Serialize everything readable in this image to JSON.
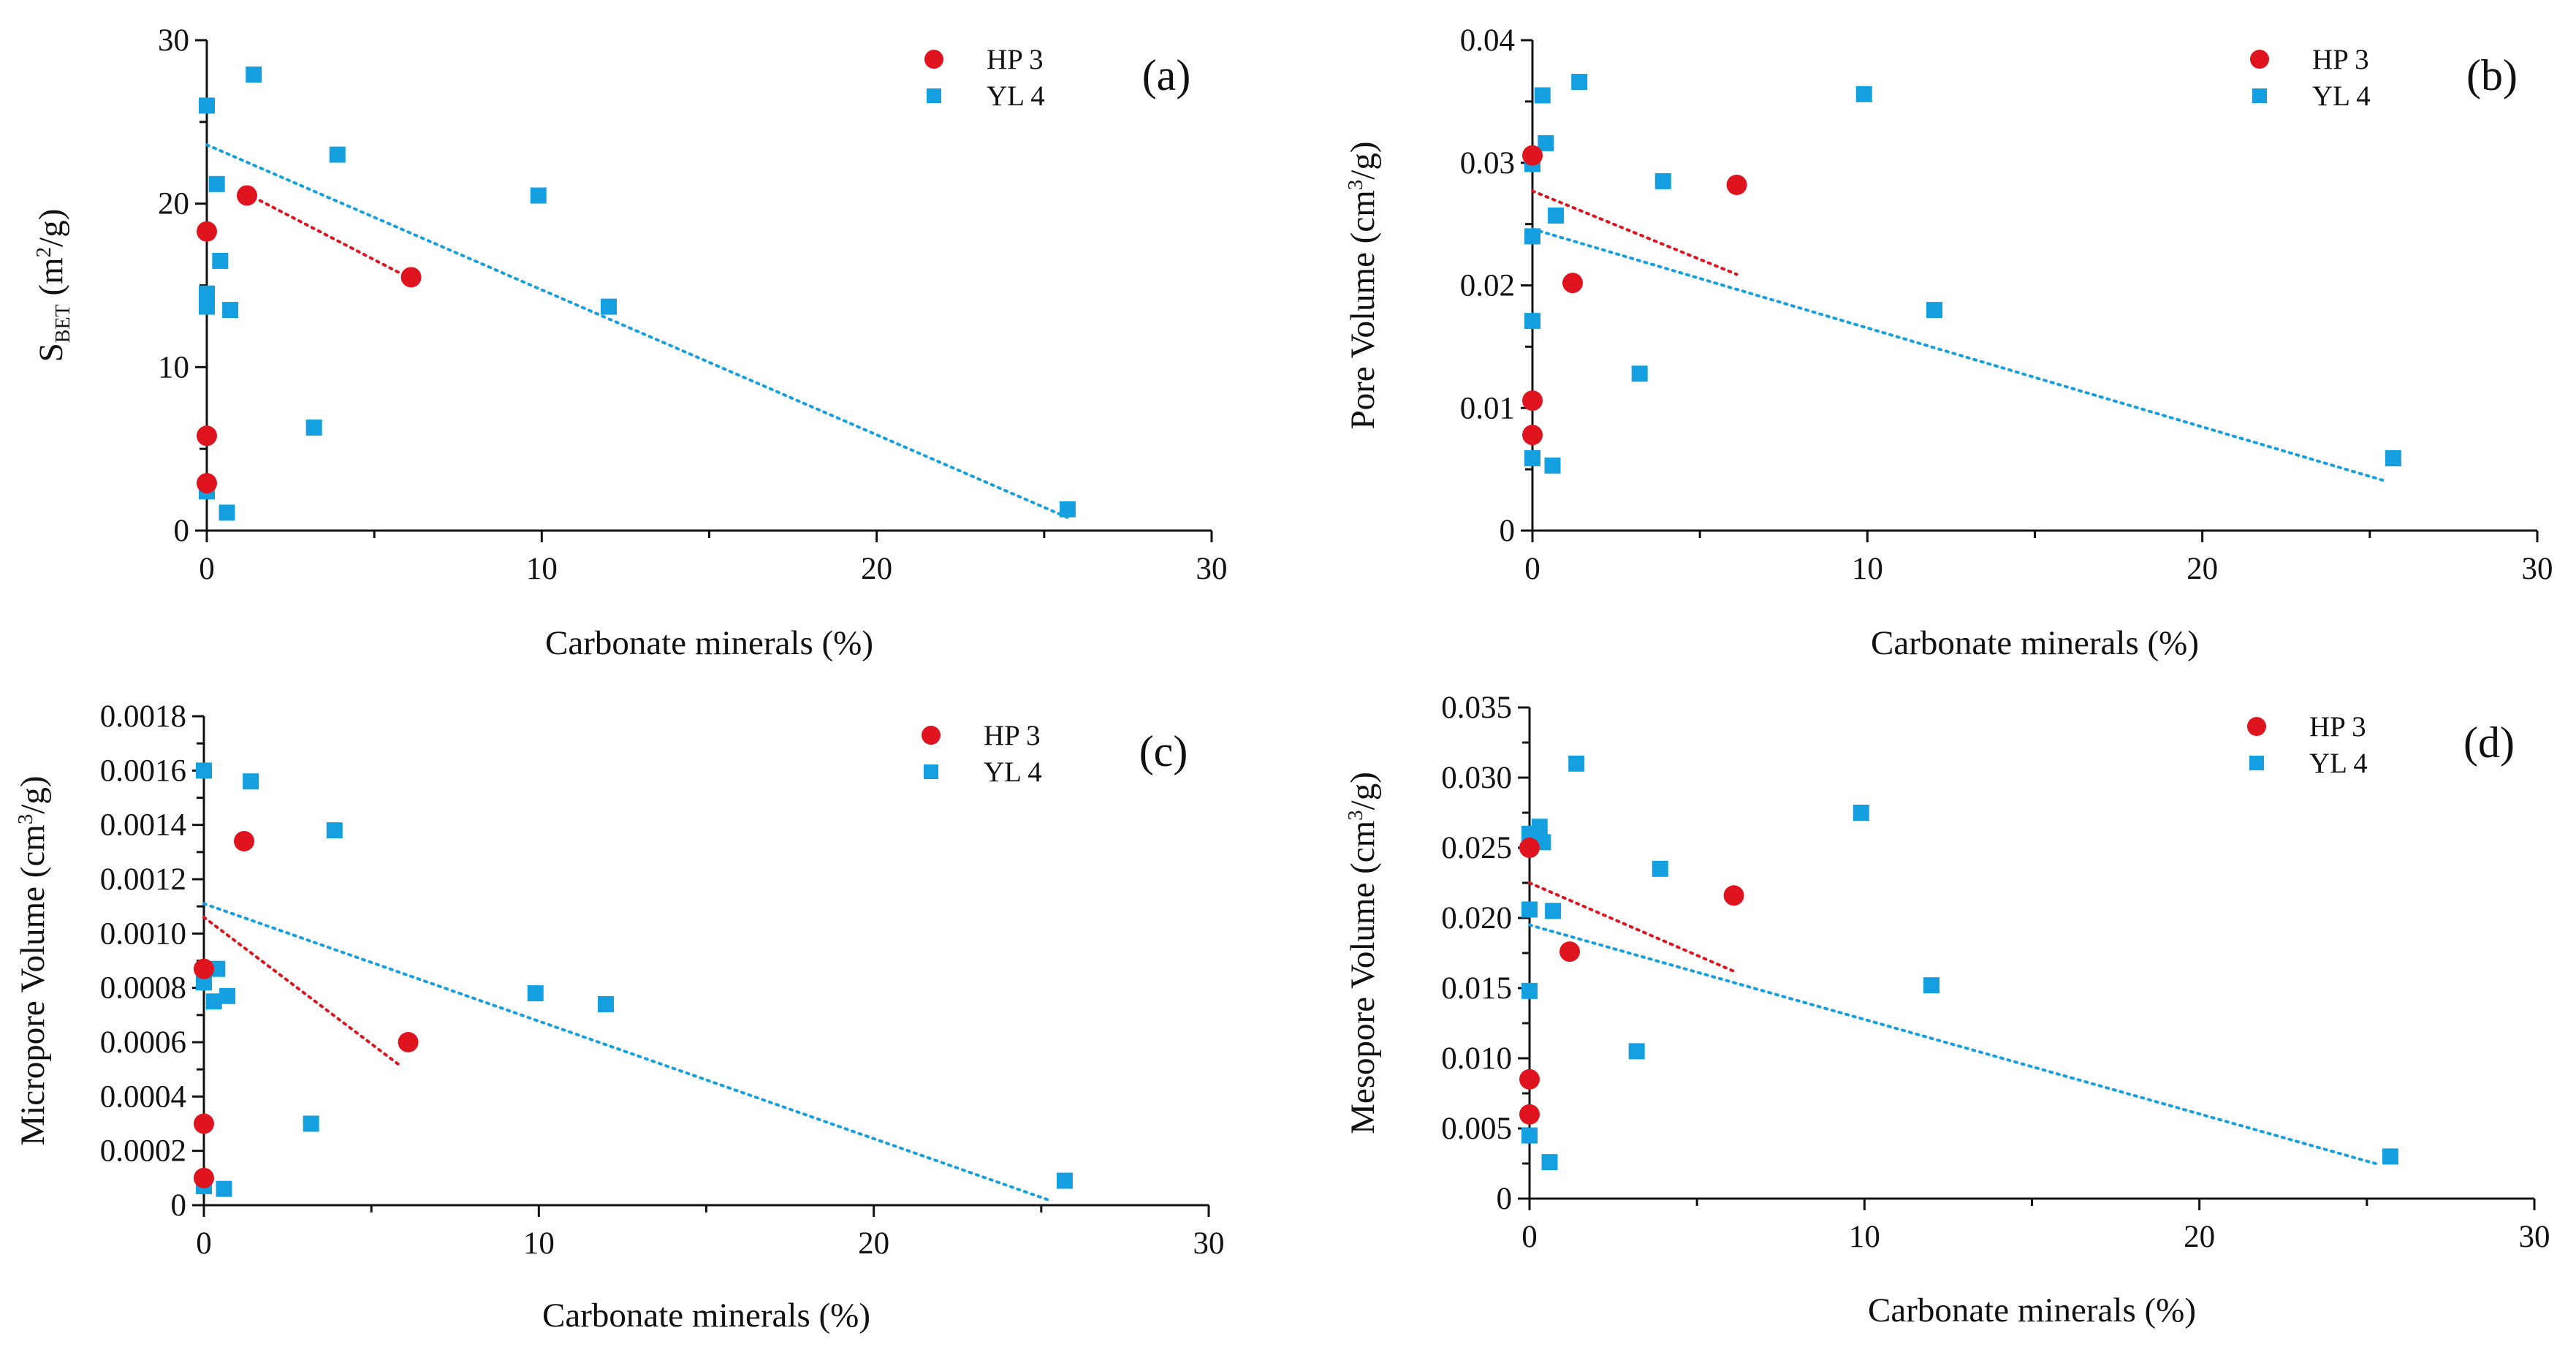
{
  "colors": {
    "HP 3": "#e0141e",
    "YL 4": "#14a0e0",
    "axis": "#111111"
  },
  "chart_data": [
    {
      "type": "scatter",
      "panel": "(a)",
      "xlabel": "Carbonate minerals (%)",
      "ylabel_main": "S",
      "ylabel_sub": "BET",
      "ylabel_unit_prefix": " (m",
      "ylabel_unit_sup": "2",
      "ylabel_unit_suffix": "/g)",
      "xlim": [
        0,
        30
      ],
      "ylim": [
        0,
        30
      ],
      "xticks": [
        0,
        10,
        20,
        30
      ],
      "yticks": [
        0,
        10,
        20,
        30
      ],
      "ytick_labels": [
        "0",
        "10",
        "20",
        "30"
      ],
      "legend_position": "top-right",
      "series": [
        {
          "name": "HP 3",
          "marker": "circle",
          "points": [
            [
              0,
              18.3
            ],
            [
              0,
              5.8
            ],
            [
              0,
              2.9
            ],
            [
              1.2,
              20.5
            ],
            [
              6.1,
              15.5
            ]
          ],
          "trend": [
            [
              1.2,
              20.6
            ],
            [
              6.1,
              15.4
            ]
          ]
        },
        {
          "name": "YL 4",
          "marker": "square",
          "points": [
            [
              0,
              26
            ],
            [
              0,
              14.5
            ],
            [
              0,
              14
            ],
            [
              0,
              13.7
            ],
            [
              0,
              2.4
            ],
            [
              0.3,
              21.2
            ],
            [
              0.4,
              16.5
            ],
            [
              0.6,
              1.1
            ],
            [
              0.7,
              13.5
            ],
            [
              1.4,
              27.9
            ],
            [
              3.2,
              6.3
            ],
            [
              3.9,
              23
            ],
            [
              9.9,
              20.5
            ],
            [
              12,
              13.7
            ],
            [
              25.7,
              1.3
            ]
          ],
          "trend": [
            [
              0,
              23.6
            ],
            [
              25.7,
              0.8
            ]
          ]
        }
      ]
    },
    {
      "type": "scatter",
      "panel": "(b)",
      "xlabel": "Carbonate minerals (%)",
      "ylabel_main": "Pore Volume",
      "ylabel_unit_prefix": " (cm",
      "ylabel_unit_sup": "3",
      "ylabel_unit_suffix": "/g)",
      "xlim": [
        0,
        30
      ],
      "ylim": [
        0,
        0.04
      ],
      "xticks": [
        0,
        10,
        20,
        30
      ],
      "yticks": [
        0,
        0.01,
        0.02,
        0.03,
        0.04
      ],
      "ytick_labels": [
        "0",
        "0.01",
        "0.02",
        "0.03",
        "0.04"
      ],
      "legend_position": "top-right",
      "series": [
        {
          "name": "HP 3",
          "marker": "circle",
          "points": [
            [
              0,
              0.0306
            ],
            [
              0,
              0.0106
            ],
            [
              0,
              0.0078
            ],
            [
              1.2,
              0.0202
            ],
            [
              6.1,
              0.0282
            ]
          ],
          "trend": [
            [
              0,
              0.0277
            ],
            [
              6.1,
              0.0209
            ]
          ]
        },
        {
          "name": "YL 4",
          "marker": "square",
          "points": [
            [
              0,
              0.0299
            ],
            [
              0,
              0.024
            ],
            [
              0,
              0.0171
            ],
            [
              0,
              0.0059
            ],
            [
              0.3,
              0.0355
            ],
            [
              0.4,
              0.0316
            ],
            [
              0.6,
              0.0053
            ],
            [
              0.7,
              0.0257
            ],
            [
              1.4,
              0.0366
            ],
            [
              3.2,
              0.0128
            ],
            [
              3.9,
              0.0285
            ],
            [
              9.9,
              0.0356
            ],
            [
              12,
              0.018
            ],
            [
              25.7,
              0.0059
            ]
          ],
          "trend": [
            [
              0,
              0.0246
            ],
            [
              25.4,
              0.0041
            ]
          ]
        }
      ]
    },
    {
      "type": "scatter",
      "panel": "(c)",
      "xlabel": "Carbonate minerals (%)",
      "ylabel_main": "Micropore Volume",
      "ylabel_unit_prefix": " (cm",
      "ylabel_unit_sup": "3",
      "ylabel_unit_suffix": "/g)",
      "xlim": [
        0,
        30
      ],
      "ylim": [
        0,
        0.0018
      ],
      "xticks": [
        0,
        10,
        20,
        30
      ],
      "yticks": [
        0,
        0.0002,
        0.0004,
        0.0006,
        0.0008,
        0.001,
        0.0012,
        0.0014,
        0.0016,
        0.0018
      ],
      "ytick_labels": [
        "0",
        "0.0002",
        "0.0004",
        "0.0006",
        "0.0008",
        "0.0010",
        "0.0012",
        "0.0014",
        "0.0016",
        "0.0018"
      ],
      "legend_position": "top-right",
      "series": [
        {
          "name": "HP 3",
          "marker": "circle",
          "points": [
            [
              0,
              0.00087
            ],
            [
              0,
              0.0003
            ],
            [
              0,
              0.0001
            ],
            [
              1.2,
              0.00134
            ],
            [
              6.1,
              0.0006
            ]
          ],
          "trend": [
            [
              0,
              0.00106
            ],
            [
              5.9,
              0.00051
            ]
          ]
        },
        {
          "name": "YL 4",
          "marker": "square",
          "points": [
            [
              0,
              0.0016
            ],
            [
              0,
              0.00082
            ],
            [
              0,
              7e-05
            ],
            [
              0.3,
              0.00075
            ],
            [
              0.4,
              0.00087
            ],
            [
              0.6,
              6e-05
            ],
            [
              0.7,
              0.00077
            ],
            [
              1.4,
              0.00156
            ],
            [
              3.2,
              0.0003
            ],
            [
              3.9,
              0.00138
            ],
            [
              9.9,
              0.00078
            ],
            [
              12,
              0.00074
            ],
            [
              25.7,
              9e-05
            ]
          ],
          "trend": [
            [
              0,
              0.00111
            ],
            [
              25.2,
              2e-05
            ]
          ]
        }
      ]
    },
    {
      "type": "scatter",
      "panel": "(d)",
      "xlabel": "Carbonate minerals (%)",
      "ylabel_main": "Mesopore Volume",
      "ylabel_unit_prefix": " (cm",
      "ylabel_unit_sup": "3",
      "ylabel_unit_suffix": "/g)",
      "xlim": [
        0,
        30
      ],
      "ylim": [
        0,
        0.035
      ],
      "xticks": [
        0,
        10,
        20,
        30
      ],
      "yticks": [
        0,
        0.005,
        0.01,
        0.015,
        0.02,
        0.025,
        0.03,
        0.035
      ],
      "ytick_labels": [
        "0",
        "0.005",
        "0.010",
        "0.015",
        "0.020",
        "0.025",
        "0.030",
        "0.035"
      ],
      "legend_position": "top-right",
      "series": [
        {
          "name": "HP 3",
          "marker": "circle",
          "points": [
            [
              0,
              0.025
            ],
            [
              0,
              0.0085
            ],
            [
              0,
              0.006
            ],
            [
              1.2,
              0.0176
            ],
            [
              6.1,
              0.0216
            ]
          ],
          "trend": [
            [
              0,
              0.0225
            ],
            [
              6.1,
              0.0162
            ]
          ]
        },
        {
          "name": "YL 4",
          "marker": "square",
          "points": [
            [
              0,
              0.026
            ],
            [
              0,
              0.0206
            ],
            [
              0,
              0.0148
            ],
            [
              0,
              0.0045
            ],
            [
              0.3,
              0.0265
            ],
            [
              0.4,
              0.0254
            ],
            [
              0.6,
              0.0026
            ],
            [
              0.7,
              0.0205
            ],
            [
              1.4,
              0.031
            ],
            [
              3.2,
              0.0105
            ],
            [
              3.9,
              0.0235
            ],
            [
              9.9,
              0.0275
            ],
            [
              12,
              0.0152
            ],
            [
              25.7,
              0.003
            ]
          ],
          "trend": [
            [
              0,
              0.0195
            ],
            [
              25.4,
              0.0024
            ]
          ]
        }
      ]
    }
  ]
}
